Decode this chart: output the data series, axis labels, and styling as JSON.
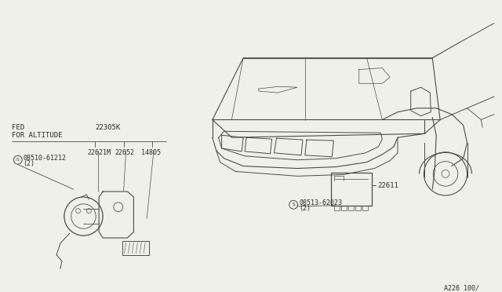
{
  "bg_color": "#f0f0eb",
  "diagram_ref": "A226 100/",
  "label_fed": "FED",
  "label_for_altitude": "FOR ALTITUDE",
  "label_22305K": "22305K",
  "label_22621M": "22621M",
  "label_22652": "22652",
  "label_14805": "14805",
  "label_08510": "08510-61212",
  "label_08510_qty": "(2)",
  "label_08513": "08513-62023",
  "label_08513_qty": "(2)",
  "label_22611": "22611",
  "font_size_labels": 6.5,
  "font_size_small": 6.0,
  "line_color": "#4a4a4a",
  "text_color": "#2a2a2a"
}
